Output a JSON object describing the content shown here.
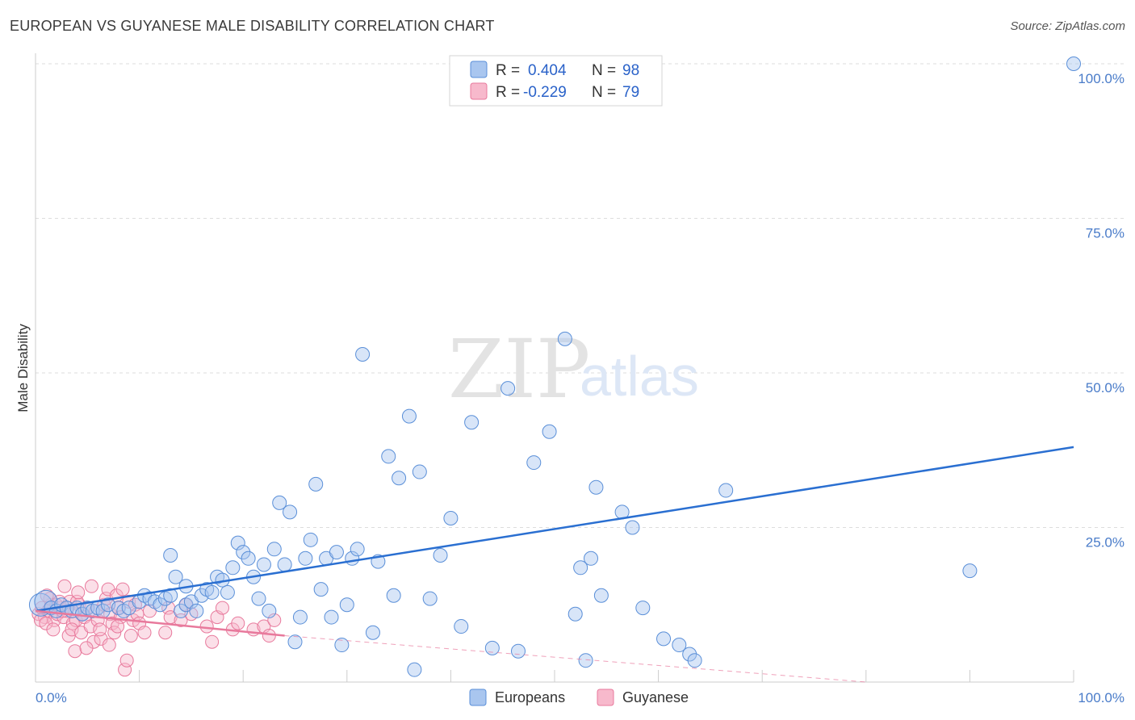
{
  "title": "EUROPEAN VS GUYANESE MALE DISABILITY CORRELATION CHART",
  "source": "Source: ZipAtlas.com",
  "watermark": {
    "zip": "ZIP",
    "atlas": "atlas"
  },
  "legend": {
    "rows": [
      {
        "r_label": "R =",
        "r_value": "0.404",
        "n_label": "N =",
        "n_value": "98"
      },
      {
        "r_label": "R =",
        "r_value": "-0.229",
        "n_label": "N =",
        "n_value": "79"
      }
    ]
  },
  "bottom_legend": {
    "europeans": "Europeans",
    "guyanese": "Guyanese"
  },
  "colors": {
    "blue_fill": "#a9c6ef",
    "blue_stroke": "#5a8fd8",
    "blue_line": "#2a6fd1",
    "pink_fill": "#f7b9cc",
    "pink_stroke": "#e8799c",
    "pink_line": "#e8799c",
    "grid": "#dddddd",
    "axis_label": "#4a7cc9"
  },
  "chart_data": {
    "type": "scatter",
    "title": "EUROPEAN VS GUYANESE MALE DISABILITY CORRELATION CHART",
    "xlabel": "",
    "ylabel": "Male Disability",
    "xlim": [
      0,
      100
    ],
    "ylim": [
      0,
      102
    ],
    "x_tick_labels": [
      "0.0%",
      "100.0%"
    ],
    "y_tick_labels": [
      "25.0%",
      "50.0%",
      "75.0%",
      "100.0%"
    ],
    "y_ticks": [
      25,
      50,
      75,
      100
    ],
    "grid": true,
    "legend_position": "top-center",
    "series": [
      {
        "name": "Europeans",
        "r": 0.404,
        "n": 98,
        "trend": {
          "x": [
            0,
            100
          ],
          "y": [
            11.5,
            38.0
          ],
          "style": "solid"
        },
        "points": [
          {
            "x": 0.5,
            "y": 12.5,
            "big": true
          },
          {
            "x": 1.0,
            "y": 13.0,
            "big": true
          },
          {
            "x": 1.5,
            "y": 12.0
          },
          {
            "x": 2.0,
            "y": 11.5
          },
          {
            "x": 2.5,
            "y": 12.5
          },
          {
            "x": 3.0,
            "y": 12.0
          },
          {
            "x": 3.5,
            "y": 11.5
          },
          {
            "x": 4.0,
            "y": 12.0
          },
          {
            "x": 4.5,
            "y": 11.0
          },
          {
            "x": 5.0,
            "y": 12.0
          },
          {
            "x": 5.5,
            "y": 11.5
          },
          {
            "x": 6.0,
            "y": 12.0
          },
          {
            "x": 6.5,
            "y": 11.5
          },
          {
            "x": 7.0,
            "y": 12.5
          },
          {
            "x": 8.0,
            "y": 12.0
          },
          {
            "x": 8.5,
            "y": 11.5
          },
          {
            "x": 9.0,
            "y": 12.0
          },
          {
            "x": 10.0,
            "y": 13.0
          },
          {
            "x": 10.5,
            "y": 14.0
          },
          {
            "x": 11.0,
            "y": 13.5
          },
          {
            "x": 11.5,
            "y": 13.0
          },
          {
            "x": 12.0,
            "y": 12.5
          },
          {
            "x": 12.5,
            "y": 13.5
          },
          {
            "x": 13.0,
            "y": 14.0
          },
          {
            "x": 13.5,
            "y": 17.0
          },
          {
            "x": 14.0,
            "y": 11.5
          },
          {
            "x": 14.5,
            "y": 12.5
          },
          {
            "x": 15.0,
            "y": 13.0
          },
          {
            "x": 15.5,
            "y": 11.5
          },
          {
            "x": 13.0,
            "y": 20.5
          },
          {
            "x": 14.5,
            "y": 15.5
          },
          {
            "x": 16.0,
            "y": 14.0
          },
          {
            "x": 16.5,
            "y": 15.0
          },
          {
            "x": 17.0,
            "y": 14.5
          },
          {
            "x": 17.5,
            "y": 17.0
          },
          {
            "x": 18.0,
            "y": 16.5
          },
          {
            "x": 18.5,
            "y": 14.5
          },
          {
            "x": 19.0,
            "y": 18.5
          },
          {
            "x": 19.5,
            "y": 22.5
          },
          {
            "x": 20.0,
            "y": 21.0
          },
          {
            "x": 20.5,
            "y": 20.0
          },
          {
            "x": 21.0,
            "y": 17.0
          },
          {
            "x": 21.5,
            "y": 13.5
          },
          {
            "x": 22.0,
            "y": 19.0
          },
          {
            "x": 22.5,
            "y": 11.5
          },
          {
            "x": 23.0,
            "y": 21.5
          },
          {
            "x": 23.5,
            "y": 29.0
          },
          {
            "x": 24.0,
            "y": 19.0
          },
          {
            "x": 24.5,
            "y": 27.5
          },
          {
            "x": 25.0,
            "y": 6.5
          },
          {
            "x": 25.5,
            "y": 10.5
          },
          {
            "x": 26.0,
            "y": 20.0
          },
          {
            "x": 26.5,
            "y": 23.0
          },
          {
            "x": 27.0,
            "y": 32.0
          },
          {
            "x": 27.5,
            "y": 15.0
          },
          {
            "x": 28.0,
            "y": 20.0
          },
          {
            "x": 28.5,
            "y": 10.5
          },
          {
            "x": 29.0,
            "y": 21.0
          },
          {
            "x": 29.5,
            "y": 6.0
          },
          {
            "x": 30.0,
            "y": 12.5
          },
          {
            "x": 30.5,
            "y": 20.0
          },
          {
            "x": 31.0,
            "y": 21.5
          },
          {
            "x": 31.5,
            "y": 53.0
          },
          {
            "x": 32.5,
            "y": 8.0
          },
          {
            "x": 33.0,
            "y": 19.5
          },
          {
            "x": 34.0,
            "y": 36.5
          },
          {
            "x": 34.5,
            "y": 14.0
          },
          {
            "x": 35.0,
            "y": 33.0
          },
          {
            "x": 36.0,
            "y": 43.0
          },
          {
            "x": 36.5,
            "y": 2.0
          },
          {
            "x": 37.0,
            "y": 34.0
          },
          {
            "x": 38.0,
            "y": 13.5
          },
          {
            "x": 39.0,
            "y": 20.5
          },
          {
            "x": 40.0,
            "y": 26.5
          },
          {
            "x": 41.0,
            "y": 9.0
          },
          {
            "x": 42.0,
            "y": 42.0
          },
          {
            "x": 44.0,
            "y": 5.5
          },
          {
            "x": 45.5,
            "y": 47.5
          },
          {
            "x": 46.5,
            "y": 5.0
          },
          {
            "x": 48.0,
            "y": 35.5
          },
          {
            "x": 49.5,
            "y": 40.5
          },
          {
            "x": 51.0,
            "y": 55.5
          },
          {
            "x": 52.0,
            "y": 11.0
          },
          {
            "x": 52.5,
            "y": 18.5
          },
          {
            "x": 53.0,
            "y": 3.5
          },
          {
            "x": 53.5,
            "y": 20.0
          },
          {
            "x": 54.0,
            "y": 31.5
          },
          {
            "x": 54.5,
            "y": 14.0
          },
          {
            "x": 56.5,
            "y": 27.5
          },
          {
            "x": 57.5,
            "y": 25.0
          },
          {
            "x": 58.5,
            "y": 12.0
          },
          {
            "x": 60.5,
            "y": 7.0
          },
          {
            "x": 62.0,
            "y": 6.0
          },
          {
            "x": 63.0,
            "y": 4.5
          },
          {
            "x": 63.5,
            "y": 3.5
          },
          {
            "x": 66.5,
            "y": 31.0
          },
          {
            "x": 90.0,
            "y": 18.0
          },
          {
            "x": 100.0,
            "y": 100.0
          }
        ]
      },
      {
        "name": "Guyanese",
        "r": -0.229,
        "n": 79,
        "trend": {
          "x": [
            0,
            24
          ],
          "y": [
            11.5,
            7.5
          ],
          "style": "solid",
          "extended_to": [
            80,
            0
          ],
          "extended_style": "dashed"
        },
        "points": [
          {
            "x": 0.3,
            "y": 11.0
          },
          {
            "x": 0.6,
            "y": 12.0
          },
          {
            "x": 0.9,
            "y": 10.5
          },
          {
            "x": 1.2,
            "y": 11.5
          },
          {
            "x": 1.5,
            "y": 12.5
          },
          {
            "x": 1.8,
            "y": 10.0
          },
          {
            "x": 2.1,
            "y": 11.0
          },
          {
            "x": 2.4,
            "y": 12.0
          },
          {
            "x": 2.7,
            "y": 10.5
          },
          {
            "x": 3.0,
            "y": 11.5
          },
          {
            "x": 3.3,
            "y": 13.0
          },
          {
            "x": 3.6,
            "y": 9.5
          },
          {
            "x": 3.9,
            "y": 10.0
          },
          {
            "x": 4.2,
            "y": 12.5
          },
          {
            "x": 4.5,
            "y": 11.0
          },
          {
            "x": 0.5,
            "y": 10.0
          },
          {
            "x": 1.0,
            "y": 9.5
          },
          {
            "x": 1.4,
            "y": 13.5
          },
          {
            "x": 2.0,
            "y": 12.5
          },
          {
            "x": 2.6,
            "y": 11.5
          },
          {
            "x": 2.8,
            "y": 15.5
          },
          {
            "x": 3.2,
            "y": 7.5
          },
          {
            "x": 3.5,
            "y": 8.5
          },
          {
            "x": 3.8,
            "y": 5.0
          },
          {
            "x": 4.0,
            "y": 13.0
          },
          {
            "x": 4.4,
            "y": 8.0
          },
          {
            "x": 4.7,
            "y": 10.5
          },
          {
            "x": 5.0,
            "y": 12.0
          },
          {
            "x": 5.3,
            "y": 9.0
          },
          {
            "x": 5.6,
            "y": 6.5
          },
          {
            "x": 5.8,
            "y": 11.5
          },
          {
            "x": 6.0,
            "y": 10.0
          },
          {
            "x": 6.3,
            "y": 7.0
          },
          {
            "x": 6.6,
            "y": 12.5
          },
          {
            "x": 6.8,
            "y": 13.5
          },
          {
            "x": 7.0,
            "y": 15.0
          },
          {
            "x": 7.2,
            "y": 11.0
          },
          {
            "x": 7.4,
            "y": 9.5
          },
          {
            "x": 7.6,
            "y": 8.0
          },
          {
            "x": 7.8,
            "y": 14.0
          },
          {
            "x": 8.0,
            "y": 12.0
          },
          {
            "x": 8.2,
            "y": 10.5
          },
          {
            "x": 8.4,
            "y": 15.0
          },
          {
            "x": 8.6,
            "y": 2.0
          },
          {
            "x": 8.8,
            "y": 3.5
          },
          {
            "x": 9.0,
            "y": 13.0
          },
          {
            "x": 9.2,
            "y": 7.5
          },
          {
            "x": 9.4,
            "y": 10.0
          },
          {
            "x": 9.6,
            "y": 12.5
          },
          {
            "x": 9.8,
            "y": 11.0
          },
          {
            "x": 10.0,
            "y": 9.5
          },
          {
            "x": 10.5,
            "y": 8.0
          },
          {
            "x": 11.0,
            "y": 11.5
          },
          {
            "x": 12.5,
            "y": 8.0
          },
          {
            "x": 12.8,
            "y": 12.0
          },
          {
            "x": 13.0,
            "y": 10.5
          },
          {
            "x": 14.0,
            "y": 10.0
          },
          {
            "x": 14.5,
            "y": 12.5
          },
          {
            "x": 15.0,
            "y": 11.0
          },
          {
            "x": 16.5,
            "y": 9.0
          },
          {
            "x": 17.0,
            "y": 6.5
          },
          {
            "x": 17.5,
            "y": 10.5
          },
          {
            "x": 18.0,
            "y": 12.0
          },
          {
            "x": 19.0,
            "y": 8.5
          },
          {
            "x": 19.5,
            "y": 9.5
          },
          {
            "x": 21.0,
            "y": 8.5
          },
          {
            "x": 22.0,
            "y": 9.0
          },
          {
            "x": 22.5,
            "y": 7.5
          },
          {
            "x": 23.0,
            "y": 10.0
          },
          {
            "x": 1.1,
            "y": 14.0
          },
          {
            "x": 1.7,
            "y": 8.5
          },
          {
            "x": 2.3,
            "y": 13.0
          },
          {
            "x": 3.1,
            "y": 12.0
          },
          {
            "x": 4.1,
            "y": 14.5
          },
          {
            "x": 4.9,
            "y": 5.5
          },
          {
            "x": 5.4,
            "y": 15.5
          },
          {
            "x": 6.2,
            "y": 8.5
          },
          {
            "x": 7.1,
            "y": 6.0
          },
          {
            "x": 7.9,
            "y": 9.0
          }
        ]
      }
    ]
  }
}
